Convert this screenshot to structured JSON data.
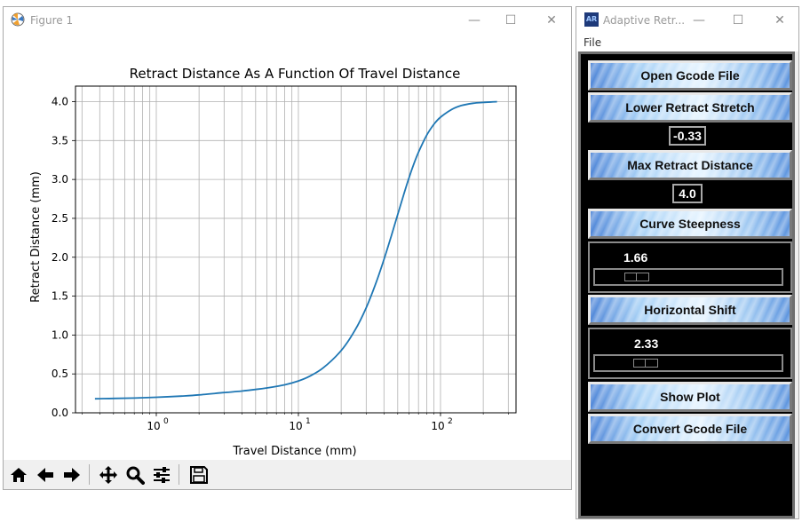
{
  "figure_window": {
    "title": "Figure 1",
    "icon": "matplotlib-logo-icon",
    "controls": {
      "minimize": "—",
      "maximize": "☐",
      "close": "✕"
    }
  },
  "chart_data": {
    "type": "line",
    "title": "Retract Distance As A Function Of Travel Distance",
    "xlabel": "Travel Distance (mm)",
    "ylabel": "Retract Distance (mm)",
    "xscale": "log",
    "xlim": [
      0.27,
      340
    ],
    "ylim": [
      0.0,
      4.2
    ],
    "xticks": [
      1,
      10,
      100
    ],
    "xtick_labels": [
      {
        "base": "10",
        "exp": "0"
      },
      {
        "base": "10",
        "exp": "1"
      },
      {
        "base": "10",
        "exp": "2"
      }
    ],
    "yticks": [
      0.0,
      0.5,
      1.0,
      1.5,
      2.0,
      2.5,
      3.0,
      3.5,
      4.0
    ],
    "ytick_labels": [
      "0.0",
      "0.5",
      "1.0",
      "1.5",
      "2.0",
      "2.5",
      "3.0",
      "3.5",
      "4.0"
    ],
    "grid": true,
    "grid_minor": true,
    "series": [
      {
        "color": "#1f77b4",
        "x": [
          0.37,
          0.5,
          0.7,
          1,
          1.5,
          2,
          3,
          4,
          5,
          6,
          8,
          10,
          12,
          15,
          20,
          25,
          30,
          35,
          40,
          45,
          50,
          55,
          60,
          65,
          70,
          80,
          90,
          100,
          120,
          140,
          170,
          200,
          250
        ],
        "y": [
          0.18,
          0.185,
          0.19,
          0.2,
          0.215,
          0.23,
          0.26,
          0.28,
          0.3,
          0.32,
          0.36,
          0.41,
          0.47,
          0.58,
          0.8,
          1.06,
          1.35,
          1.66,
          1.97,
          2.27,
          2.55,
          2.8,
          3.02,
          3.2,
          3.35,
          3.57,
          3.71,
          3.8,
          3.9,
          3.95,
          3.98,
          3.99,
          4.0
        ]
      }
    ]
  },
  "toolbar": {
    "buttons": [
      {
        "name": "home-icon",
        "label": "home"
      },
      {
        "name": "back-arrow-icon",
        "label": "back"
      },
      {
        "name": "forward-arrow-icon",
        "label": "forward"
      },
      {
        "name": "pan-icon",
        "label": "pan"
      },
      {
        "name": "zoom-icon",
        "label": "zoom"
      },
      {
        "name": "configure-subplots-icon",
        "label": "subplots"
      },
      {
        "name": "save-icon",
        "label": "save"
      }
    ]
  },
  "ar_window": {
    "title": "Adaptive Retr...",
    "logo_text": "AR",
    "controls": {
      "minimize": "—",
      "maximize": "☐",
      "close": "✕"
    },
    "menu": {
      "file": "File"
    },
    "open_button": "Open Gcode File",
    "lower_label": "Lower Retract Stretch",
    "lower_value": "-0.33",
    "max_label": "Max Retract Distance",
    "max_value": "4.0",
    "steepness_label": "Curve Steepness",
    "steepness_value": "1.66",
    "steepness_fraction": 0.17,
    "shift_label": "Horizontal Shift",
    "shift_value": "2.33",
    "shift_fraction": 0.23,
    "show_plot_button": "Show Plot",
    "convert_button": "Convert Gcode File"
  },
  "colors": {
    "line": "#1f77b4",
    "grid": "#b0b0b0",
    "panel_bg": "#000000",
    "button_blue": "#7fb3ec"
  }
}
